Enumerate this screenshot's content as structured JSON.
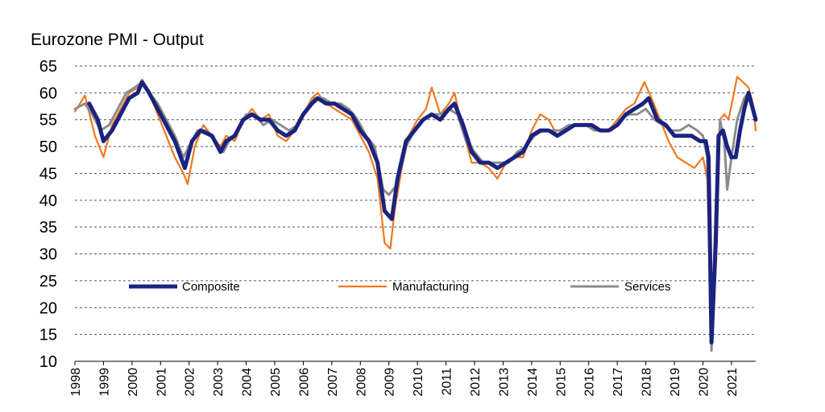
{
  "chart_data": {
    "type": "line",
    "title": "Eurozone PMI - Output",
    "xlabel": "",
    "ylabel": "",
    "ylim": [
      10,
      65
    ],
    "yticks": [
      10,
      15,
      20,
      25,
      30,
      35,
      40,
      45,
      50,
      55,
      60,
      65
    ],
    "xlim": [
      1998.0,
      2021.85
    ],
    "xticks": [
      "1998",
      "1999",
      "2000",
      "2001",
      "2002",
      "2003",
      "2004",
      "2005",
      "2006",
      "2007",
      "2008",
      "2009",
      "2010",
      "2011",
      "2012",
      "2013",
      "2014",
      "2015",
      "2016",
      "2017",
      "2018",
      "2019",
      "2020",
      "2021"
    ],
    "grid": "horizontal dashed",
    "legend_position": "center",
    "series": [
      {
        "name": "Composite",
        "color": "#1a237e",
        "x": [
          1998.5,
          1998.8,
          1999.0,
          1999.3,
          1999.6,
          1999.9,
          2000.2,
          2000.35,
          2000.6,
          2000.9,
          2001.2,
          2001.5,
          2001.85,
          2002.1,
          2002.4,
          2002.8,
          2003.1,
          2003.3,
          2003.6,
          2003.9,
          2004.2,
          2004.5,
          2004.8,
          2005.1,
          2005.4,
          2005.7,
          2006.0,
          2006.3,
          2006.5,
          2006.8,
          2007.1,
          2007.4,
          2007.7,
          2008.0,
          2008.3,
          2008.6,
          2008.85,
          2009.1,
          2009.3,
          2009.6,
          2009.9,
          2010.2,
          2010.5,
          2010.8,
          2011.1,
          2011.3,
          2011.6,
          2011.9,
          2012.2,
          2012.5,
          2012.8,
          2013.1,
          2013.4,
          2013.7,
          2014.0,
          2014.3,
          2014.6,
          2014.9,
          2015.2,
          2015.5,
          2015.8,
          2016.1,
          2016.4,
          2016.7,
          2017.0,
          2017.3,
          2017.6,
          2017.9,
          2018.1,
          2018.4,
          2018.7,
          2019.0,
          2019.3,
          2019.6,
          2019.9,
          2020.1,
          2020.2,
          2020.3,
          2020.45,
          2020.55,
          2020.7,
          2020.85,
          2021.0,
          2021.15,
          2021.3,
          2021.45,
          2021.6,
          2021.85
        ],
        "y": [
          58,
          55,
          51,
          53,
          56,
          59,
          60,
          62,
          60,
          57,
          54,
          51,
          46,
          51,
          53,
          52,
          49,
          51,
          52,
          55,
          56,
          55,
          55,
          53,
          52,
          53,
          56,
          58,
          59,
          58,
          58,
          57,
          56,
          53,
          51,
          47,
          38,
          36.5,
          44,
          51,
          53,
          55,
          56,
          55,
          57,
          58,
          54,
          49,
          47,
          47,
          46,
          47,
          48,
          49,
          52,
          53,
          53,
          52,
          53,
          54,
          54,
          54,
          53,
          53,
          54,
          56,
          57,
          58,
          59,
          55,
          54,
          52,
          52,
          52,
          51,
          51,
          48,
          13.5,
          32,
          52,
          53,
          50,
          48,
          48,
          53,
          57,
          60,
          55
        ]
      },
      {
        "name": "Manufacturing",
        "color": "#f07820",
        "x": [
          1998.0,
          1998.35,
          1998.7,
          1999.0,
          1999.3,
          1999.6,
          1999.9,
          2000.2,
          2000.35,
          2000.6,
          2000.9,
          2001.2,
          2001.5,
          2001.8,
          2001.95,
          2002.2,
          2002.5,
          2002.8,
          2003.1,
          2003.3,
          2003.6,
          2003.9,
          2004.2,
          2004.5,
          2004.8,
          2005.1,
          2005.4,
          2005.7,
          2006.0,
          2006.3,
          2006.5,
          2006.8,
          2007.1,
          2007.4,
          2007.7,
          2008.0,
          2008.3,
          2008.6,
          2008.85,
          2009.05,
          2009.2,
          2009.45,
          2009.7,
          2010.0,
          2010.3,
          2010.5,
          2010.8,
          2011.1,
          2011.3,
          2011.6,
          2011.9,
          2012.2,
          2012.5,
          2012.8,
          2013.1,
          2013.4,
          2013.7,
          2014.0,
          2014.3,
          2014.6,
          2014.9,
          2015.2,
          2015.5,
          2015.8,
          2016.1,
          2016.4,
          2016.7,
          2017.0,
          2017.3,
          2017.6,
          2017.95,
          2018.2,
          2018.5,
          2018.8,
          2019.1,
          2019.4,
          2019.7,
          2020.0,
          2020.15,
          2020.3,
          2020.45,
          2020.6,
          2020.75,
          2020.9,
          2021.05,
          2021.2,
          2021.4,
          2021.6,
          2021.75,
          2021.85
        ],
        "y": [
          56.5,
          59.5,
          52,
          48,
          54,
          57,
          60,
          61,
          62.5,
          60,
          56,
          52,
          48,
          45,
          43,
          50,
          54,
          52,
          50,
          52,
          51,
          55,
          57,
          55,
          56,
          52,
          51,
          53,
          56,
          59,
          60,
          58,
          57,
          56,
          55,
          52,
          49,
          44,
          32,
          31,
          38,
          46,
          52,
          55,
          57,
          61,
          56,
          58,
          60,
          53,
          47,
          47,
          46,
          44,
          47,
          48,
          48,
          53,
          56,
          55,
          52,
          53,
          54,
          54,
          54,
          53,
          53,
          55,
          57,
          58,
          62,
          59,
          55,
          51,
          48,
          47,
          46,
          48,
          44,
          16,
          40,
          55,
          56,
          55,
          59,
          63,
          62,
          61,
          58,
          53
        ]
      },
      {
        "name": "Services",
        "color": "#8c8c8c",
        "x": [
          1998.0,
          1998.35,
          1998.6,
          1998.9,
          1999.2,
          1999.5,
          1999.8,
          2000.1,
          2000.35,
          2000.6,
          2000.9,
          2001.2,
          2001.5,
          2001.8,
          2002.0,
          2002.3,
          2002.6,
          2002.9,
          2003.2,
          2003.4,
          2003.7,
          2004.0,
          2004.3,
          2004.6,
          2004.9,
          2005.2,
          2005.5,
          2005.8,
          2006.1,
          2006.4,
          2006.7,
          2007.0,
          2007.3,
          2007.6,
          2007.9,
          2008.2,
          2008.5,
          2008.8,
          2009.0,
          2009.3,
          2009.6,
          2009.9,
          2010.2,
          2010.5,
          2010.8,
          2011.1,
          2011.4,
          2011.7,
          2012.0,
          2012.3,
          2012.6,
          2012.9,
          2013.2,
          2013.5,
          2013.8,
          2014.1,
          2014.4,
          2014.7,
          2015.0,
          2015.3,
          2015.6,
          2015.9,
          2016.2,
          2016.5,
          2016.8,
          2017.1,
          2017.4,
          2017.7,
          2018.0,
          2018.3,
          2018.6,
          2018.9,
          2019.2,
          2019.5,
          2019.8,
          2020.0,
          2020.15,
          2020.3,
          2020.45,
          2020.6,
          2020.75,
          2020.85,
          2021.0,
          2021.2,
          2021.45,
          2021.6,
          2021.85
        ],
        "y": [
          57,
          58,
          56,
          53,
          54,
          57,
          60,
          61,
          62,
          60,
          58,
          55,
          52,
          48,
          50,
          53,
          53,
          51,
          49,
          51,
          53,
          56,
          56,
          54,
          55,
          54,
          53,
          54,
          57,
          59,
          59,
          58,
          58,
          57,
          55,
          52,
          50,
          42,
          41,
          43,
          50,
          53,
          55,
          56,
          56,
          57,
          56,
          51,
          49,
          47,
          47,
          47,
          47,
          49,
          50,
          52,
          53,
          53,
          53,
          54,
          54,
          54,
          53,
          53,
          53,
          55,
          56,
          56,
          57,
          55,
          54,
          53,
          53,
          54,
          53,
          52,
          48,
          12,
          30,
          55,
          51,
          42,
          48,
          55,
          59,
          60,
          55
        ]
      }
    ]
  }
}
